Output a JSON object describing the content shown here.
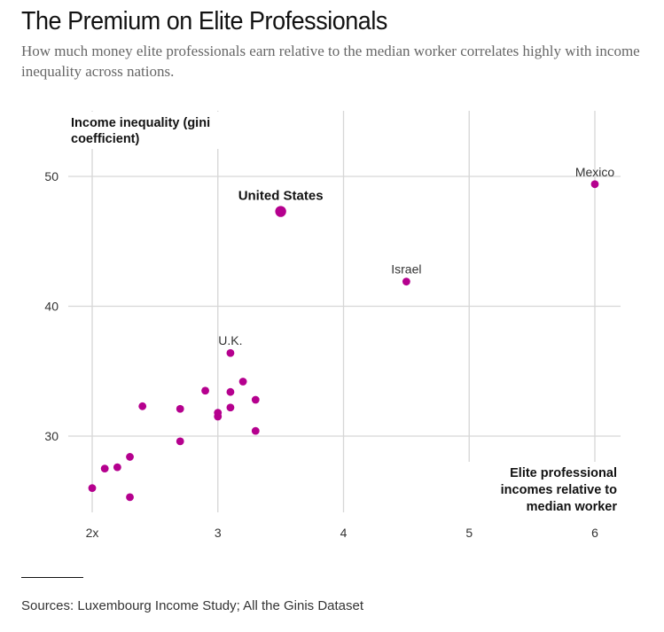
{
  "header": {
    "title": "The Premium on Elite Professionals",
    "subtitle": "How much money elite professionals earn relative to the median worker correlates highly with income inequality across nations."
  },
  "footer": {
    "source": "Sources: Luxembourg Income Study; All the Ginis Dataset"
  },
  "colors": {
    "dot": "#b5008e",
    "grid": "#d6d6d6",
    "text": "#121212"
  },
  "chart_data": {
    "type": "scatter",
    "title": "The Premium on Elite Professionals",
    "xlabel": "Elite professional incomes relative to median worker",
    "xlabel_lines": [
      "Elite professional",
      "incomes relative to",
      "median worker"
    ],
    "ylabel": "Income inequality (gini coefficient)",
    "ylabel_lines": [
      "Income inequality (gini",
      "coefficient)"
    ],
    "xlim": [
      1.8,
      6.2
    ],
    "ylim": [
      23.5,
      52.5
    ],
    "x_ticks": [
      {
        "value": 2,
        "label": "2x"
      },
      {
        "value": 3,
        "label": "3"
      },
      {
        "value": 4,
        "label": "4"
      },
      {
        "value": 5,
        "label": "5"
      },
      {
        "value": 6,
        "label": "6"
      }
    ],
    "y_ticks": [
      {
        "value": 30,
        "label": "30"
      },
      {
        "value": 40,
        "label": "40"
      },
      {
        "value": 50,
        "label": "50"
      }
    ],
    "grid": true,
    "points": [
      {
        "x": 3.5,
        "y": 47.3,
        "label": "United States",
        "highlight": true
      },
      {
        "x": 6.0,
        "y": 49.4,
        "label": "Mexico"
      },
      {
        "x": 4.5,
        "y": 41.9,
        "label": "Israel"
      },
      {
        "x": 3.1,
        "y": 36.4,
        "label": "U.K."
      },
      {
        "x": 3.2,
        "y": 34.2
      },
      {
        "x": 2.9,
        "y": 33.5
      },
      {
        "x": 3.1,
        "y": 33.4
      },
      {
        "x": 3.3,
        "y": 32.8
      },
      {
        "x": 2.4,
        "y": 32.3
      },
      {
        "x": 3.1,
        "y": 32.2
      },
      {
        "x": 2.7,
        "y": 32.1
      },
      {
        "x": 3.0,
        "y": 31.8
      },
      {
        "x": 3.0,
        "y": 31.5
      },
      {
        "x": 3.3,
        "y": 30.4
      },
      {
        "x": 2.7,
        "y": 29.6
      },
      {
        "x": 2.3,
        "y": 28.4
      },
      {
        "x": 2.2,
        "y": 27.6
      },
      {
        "x": 2.1,
        "y": 27.5
      },
      {
        "x": 2.0,
        "y": 26.0
      },
      {
        "x": 2.3,
        "y": 25.3
      }
    ]
  }
}
